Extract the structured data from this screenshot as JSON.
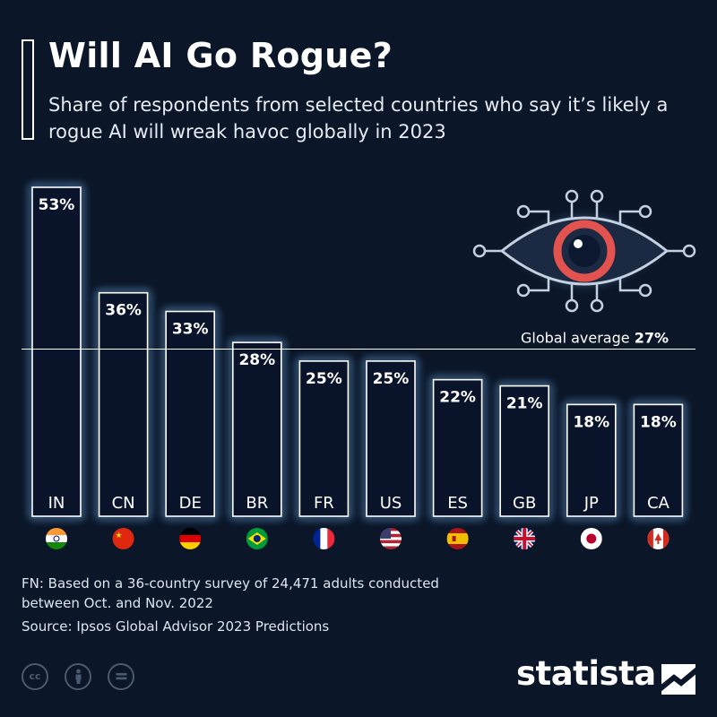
{
  "header": {
    "title": "Will AI Go Rogue?",
    "subtitle": "Share of respondents from selected countries who say it’s likely a rogue AI will wreak havoc globally in 2023"
  },
  "chart_data": {
    "type": "bar",
    "categories": [
      "IN",
      "CN",
      "DE",
      "BR",
      "FR",
      "US",
      "ES",
      "GB",
      "JP",
      "CA"
    ],
    "values": [
      53,
      36,
      33,
      28,
      25,
      25,
      22,
      21,
      18,
      18
    ],
    "value_labels": [
      "53%",
      "36%",
      "33%",
      "28%",
      "25%",
      "25%",
      "22%",
      "21%",
      "18%",
      "18%"
    ],
    "flag_icons": [
      "india-flag-icon",
      "china-flag-icon",
      "germany-flag-icon",
      "brazil-flag-icon",
      "france-flag-icon",
      "usa-flag-icon",
      "spain-flag-icon",
      "uk-flag-icon",
      "japan-flag-icon",
      "canada-flag-icon"
    ],
    "unit": "%",
    "ylim": [
      0,
      53
    ],
    "reference_line": {
      "label": "Global average",
      "value_label": "27%",
      "value": 27
    },
    "grid": false,
    "legend": "none"
  },
  "illustration": {
    "icon": "ai-eye-circuit-icon"
  },
  "footer": {
    "footnote": "FN: Based on a 36-country survey of 24,471 adults conducted between Oct. and Nov. 2022",
    "source": "Source: Ipsos Global Advisor 2023 Predictions",
    "license_icons": [
      "cc-icon",
      "attribution-icon",
      "no-derivatives-icon"
    ],
    "brand": "statista"
  },
  "colors": {
    "background": "#0b1628",
    "bar_fill": "#09132a",
    "bar_border": "#ffffff",
    "glow": "#5d8fc0",
    "eye_red": "#e2524f",
    "text": "#ffffff",
    "muted_icon": "#4a5a70"
  }
}
